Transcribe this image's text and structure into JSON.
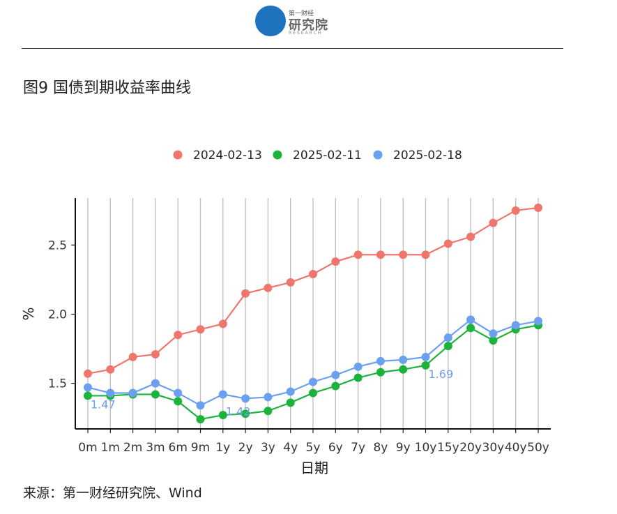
{
  "header": {
    "logo_top": "第一财经",
    "logo_main": "研究院",
    "logo_en": "RESEARCH"
  },
  "figure_title": "图9 国债到期收益率曲线",
  "source": "来源：第一财经研究院、Wind",
  "colors": {
    "series_2024_02_13": "#f0766d",
    "series_2025_02_11": "#1cb33c",
    "series_2025_02_18": "#6b9ff0",
    "grid": "#bdbdbd",
    "logo": "#1e73be"
  },
  "chart_data": {
    "type": "line",
    "xlabel": "日期",
    "ylabel": "%",
    "categories": [
      "0m",
      "1m",
      "2m",
      "3m",
      "6m",
      "9m",
      "1y",
      "2y",
      "3y",
      "4y",
      "5y",
      "6y",
      "7y",
      "8y",
      "9y",
      "10y",
      "15y",
      "20y",
      "30y",
      "40y",
      "50y"
    ],
    "ylim": [
      1.17,
      2.84
    ],
    "yticks": [
      "1.5",
      "2.0",
      "2.5"
    ],
    "grid": "vertical",
    "legend_position": "top",
    "series": [
      {
        "name": "2024-02-13",
        "color": "#f0766d",
        "values": [
          1.57,
          1.6,
          1.69,
          1.71,
          1.85,
          1.89,
          1.93,
          2.15,
          2.19,
          2.23,
          2.29,
          2.38,
          2.43,
          2.43,
          2.43,
          2.43,
          2.51,
          2.56,
          2.66,
          2.75,
          2.77
        ]
      },
      {
        "name": "2025-02-11",
        "color": "#1cb33c",
        "values": [
          1.41,
          1.41,
          1.42,
          1.42,
          1.37,
          1.24,
          1.27,
          1.28,
          1.3,
          1.36,
          1.43,
          1.48,
          1.54,
          1.58,
          1.6,
          1.63,
          1.77,
          1.9,
          1.81,
          1.89,
          1.92
        ]
      },
      {
        "name": "2025-02-18",
        "color": "#6b9ff0",
        "values": [
          1.47,
          1.43,
          1.43,
          1.5,
          1.43,
          1.34,
          1.42,
          1.39,
          1.4,
          1.44,
          1.51,
          1.56,
          1.62,
          1.66,
          1.67,
          1.69,
          1.83,
          1.96,
          1.86,
          1.92,
          1.95
        ]
      }
    ],
    "annotations": [
      {
        "series": "2025-02-18",
        "category": "0m",
        "text": "1.47"
      },
      {
        "series": "2025-02-18",
        "category": "1y",
        "text": "1.42"
      },
      {
        "series": "2025-02-18",
        "category": "10y",
        "text": "1.69"
      }
    ]
  }
}
